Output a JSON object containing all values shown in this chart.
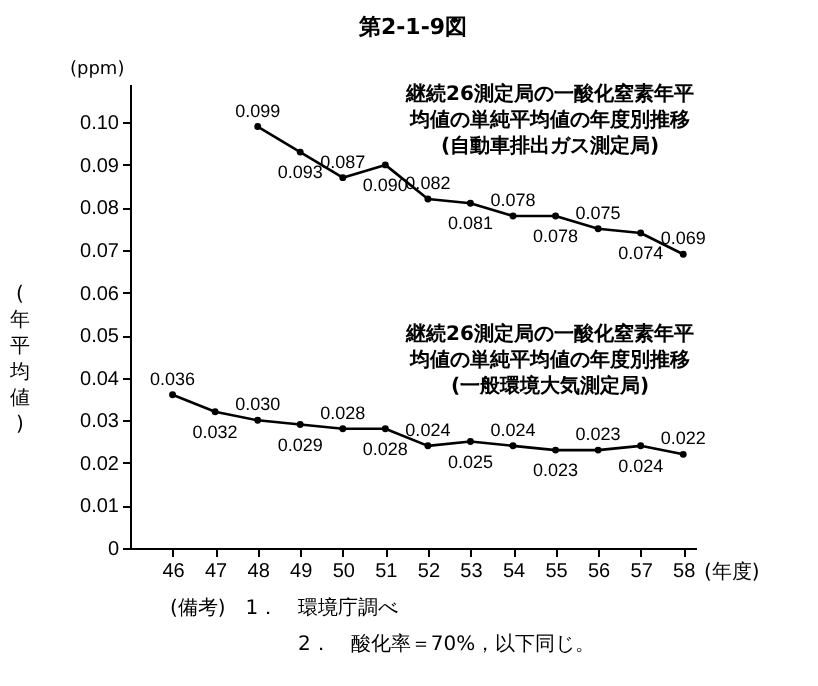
{
  "chart_data": {
    "type": "line",
    "title": "第2-1-9図",
    "xlabel": "(年度)",
    "ylabel": "(年平均値)",
    "x": [
      46,
      47,
      48,
      49,
      50,
      51,
      52,
      53,
      54,
      55,
      56,
      57,
      58
    ],
    "series": [
      {
        "name": "継続26測定局の一酸化窒素年平均値の単純平均値の年度別推移(自動車排出ガス測定局)",
        "color": "#000000",
        "values": [
          null,
          null,
          0.099,
          0.093,
          0.087,
          0.09,
          0.082,
          0.081,
          0.078,
          0.078,
          0.075,
          0.074,
          0.069
        ],
        "value_labels": [
          null,
          null,
          "0.099",
          "0.093",
          "0.087",
          "0.090",
          "0.082",
          "0.081",
          "0.078",
          "0.078",
          "0.075",
          "0.074",
          "0.069"
        ]
      },
      {
        "name": "継続26測定局の一酸化窒素年平均値の単純平均値の年度別推移(一般環境大気測定局)",
        "color": "#000000",
        "values": [
          0.036,
          0.032,
          0.03,
          0.029,
          0.028,
          0.028,
          0.024,
          0.025,
          0.024,
          0.023,
          0.023,
          0.024,
          0.022
        ],
        "value_labels": [
          "0.036",
          "0.032",
          "0.030",
          "0.029",
          "0.028",
          "0.028",
          "0.024",
          "0.025",
          "0.024",
          "0.023",
          "0.023",
          "0.024",
          "0.022"
        ]
      }
    ],
    "xlim": [
      45,
      58.3
    ],
    "xticks": [
      46,
      47,
      48,
      49,
      50,
      51,
      52,
      53,
      54,
      55,
      56,
      57,
      58
    ],
    "ylim": [
      0,
      0.109
    ],
    "yticks": [
      0,
      0.01,
      0.02,
      0.03,
      0.04,
      0.05,
      0.06,
      0.07,
      0.08,
      0.09,
      {
        "value": 0.1,
        "label": "0.10"
      }
    ],
    "marker": "circle",
    "line_style": "solid",
    "grid": false,
    "annotations": [
      "(ppm)",
      "(備考)　1．　環境庁調べ",
      "2．　酸化率＝70%，以下同じ。"
    ]
  }
}
